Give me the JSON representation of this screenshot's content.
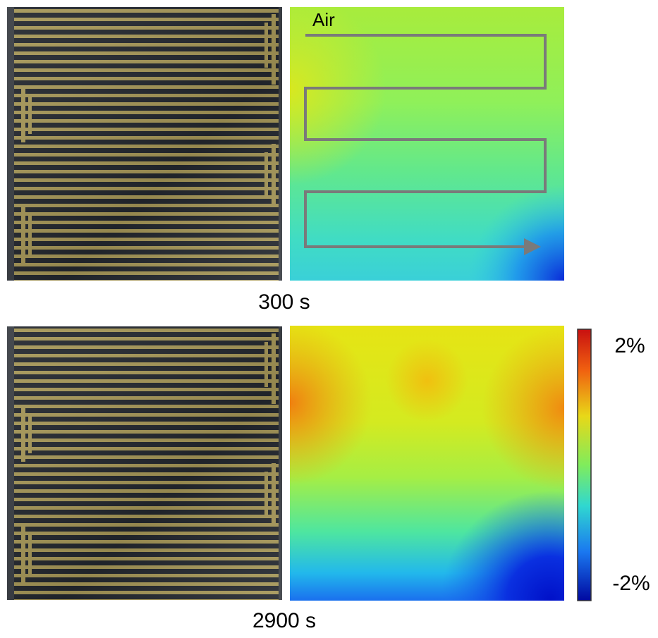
{
  "panels": [
    {
      "label": "300 s",
      "annotation": "Air"
    },
    {
      "label": "2900 s"
    }
  ],
  "colorbar": {
    "max_label": "2%",
    "min_label": "-2%"
  }
}
